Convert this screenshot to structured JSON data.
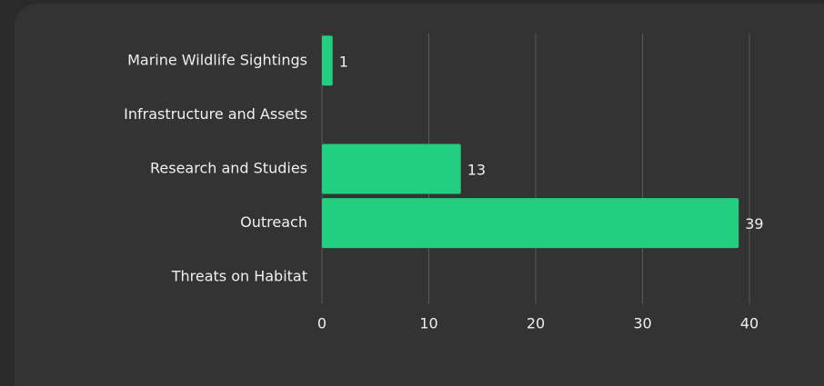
{
  "chart_data": {
    "type": "barh",
    "categories": [
      "Marine Wildlife Sightings",
      "Infrastructure and Assets",
      "Research and Studies",
      "Outreach",
      "Threats on Habitat"
    ],
    "values": [
      1,
      0,
      13,
      39,
      0
    ],
    "color": "#22cf80",
    "xlim": [
      0,
      40
    ],
    "xticks": [
      0,
      10,
      20,
      30,
      40
    ],
    "grid": true
  }
}
